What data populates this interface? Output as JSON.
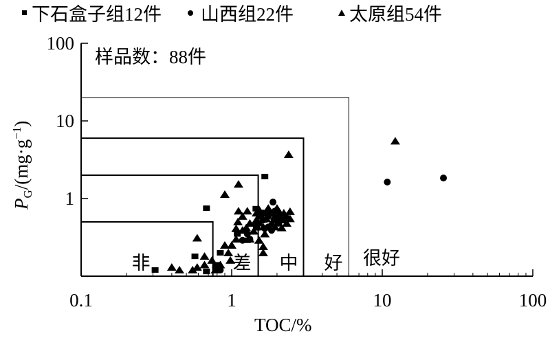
{
  "chart_data": {
    "type": "scatter",
    "xscale": "log",
    "yscale": "log",
    "xlim": [
      0.1,
      100
    ],
    "ylim": [
      0.1,
      100
    ],
    "xlabel": "TOC/%",
    "ylabel_main": "P",
    "ylabel_sub": "G",
    "ylabel_rest": "/(mg·g",
    "ylabel_sup": "−1",
    "ylabel_end": ")",
    "xticks": [
      "0.1",
      "1",
      "10",
      "100"
    ],
    "yticks": [
      "1",
      "10",
      "100"
    ],
    "annotation": "样品数：88件",
    "legend_position": "top",
    "grid": false,
    "color": "#000000",
    "zones": [
      {
        "label": "非",
        "toc_max": 0.75,
        "pg_max": 0.5
      },
      {
        "label": "差",
        "toc_max": 1.5,
        "pg_max": 2
      },
      {
        "label": "中",
        "toc_max": 3,
        "pg_max": 6
      },
      {
        "label": "好",
        "toc_max": 6,
        "pg_max": 20
      },
      {
        "label": "很好"
      }
    ],
    "series": [
      {
        "name": "下石盒子组12件",
        "marker": "square",
        "points": [
          [
            0.31,
            0.12
          ],
          [
            0.68,
            0.75
          ],
          [
            0.57,
            0.18
          ],
          [
            1.66,
            1.92
          ],
          [
            1.45,
            0.74
          ],
          [
            0.84,
            0.2
          ],
          [
            1.46,
            0.42
          ],
          [
            1.27,
            0.29
          ],
          [
            1.64,
            0.53
          ],
          [
            0.68,
            0.115
          ],
          [
            0.79,
            0.14
          ],
          [
            1.09,
            0.35
          ]
        ]
      },
      {
        "name": "山西组22件",
        "marker": "circle",
        "points": [
          [
            1.88,
            0.9
          ],
          [
            10.8,
            1.63
          ],
          [
            25.5,
            1.84
          ],
          [
            0.78,
            0.13
          ],
          [
            1.32,
            0.3
          ],
          [
            1.45,
            0.48
          ],
          [
            1.52,
            0.59
          ],
          [
            1.62,
            0.65
          ],
          [
            1.75,
            0.59
          ],
          [
            1.84,
            0.65
          ],
          [
            1.94,
            0.53
          ],
          [
            2.05,
            0.48
          ],
          [
            1.75,
            0.43
          ],
          [
            1.66,
            0.41
          ],
          [
            1.84,
            0.39
          ],
          [
            1.52,
            0.48
          ],
          [
            1.18,
            0.29
          ],
          [
            1.27,
            0.35
          ],
          [
            2.09,
            0.59
          ],
          [
            1.94,
            0.69
          ],
          [
            1.62,
            0.53
          ],
          [
            0.84,
            0.12
          ]
        ]
      },
      {
        "name": "太原组54件",
        "marker": "triangle",
        "points": [
          [
            2.39,
            3.68
          ],
          [
            1.11,
            1.53
          ],
          [
            0.9,
            1.13
          ],
          [
            0.59,
            0.31
          ],
          [
            0.4,
            0.13
          ],
          [
            0.45,
            0.12
          ],
          [
            0.66,
            0.14
          ],
          [
            0.9,
            0.25
          ],
          [
            1.11,
            0.69
          ],
          [
            2.44,
            0.68
          ],
          [
            2.32,
            0.59
          ],
          [
            2.22,
            0.53
          ],
          [
            1.62,
            0.24
          ],
          [
            1.62,
            0.2
          ],
          [
            1.07,
            0.41
          ],
          [
            1.18,
            0.39
          ],
          [
            1.32,
            0.3
          ],
          [
            1.52,
            0.29
          ],
          [
            2.09,
            0.65
          ],
          [
            12.2,
            5.5
          ],
          [
            0.59,
            0.13
          ],
          [
            0.78,
            0.12
          ],
          [
            0.84,
            0.14
          ],
          [
            1.27,
            0.69
          ],
          [
            1.46,
            0.65
          ],
          [
            1.52,
            0.72
          ],
          [
            1.75,
            0.75
          ],
          [
            1.94,
            0.59
          ],
          [
            2.05,
            0.55
          ],
          [
            2.22,
            0.65
          ],
          [
            1.84,
            0.48
          ],
          [
            1.62,
            0.43
          ],
          [
            1.46,
            0.53
          ],
          [
            1.32,
            0.48
          ],
          [
            1.18,
            0.59
          ],
          [
            1.07,
            0.3
          ],
          [
            1.0,
            0.25
          ],
          [
            0.95,
            0.2
          ],
          [
            0.66,
            0.18
          ],
          [
            0.74,
            0.16
          ],
          [
            0.55,
            0.12
          ],
          [
            1.66,
            0.35
          ],
          [
            1.94,
            0.43
          ],
          [
            2.32,
            0.48
          ],
          [
            2.44,
            0.55
          ],
          [
            1.75,
            0.65
          ],
          [
            1.4,
            0.38
          ],
          [
            1.25,
            0.42
          ],
          [
            2.0,
            0.75
          ],
          [
            1.55,
            0.62
          ],
          [
            0.98,
            0.16
          ],
          [
            1.1,
            0.5
          ],
          [
            2.15,
            0.42
          ],
          [
            1.7,
            0.55
          ]
        ]
      }
    ]
  }
}
